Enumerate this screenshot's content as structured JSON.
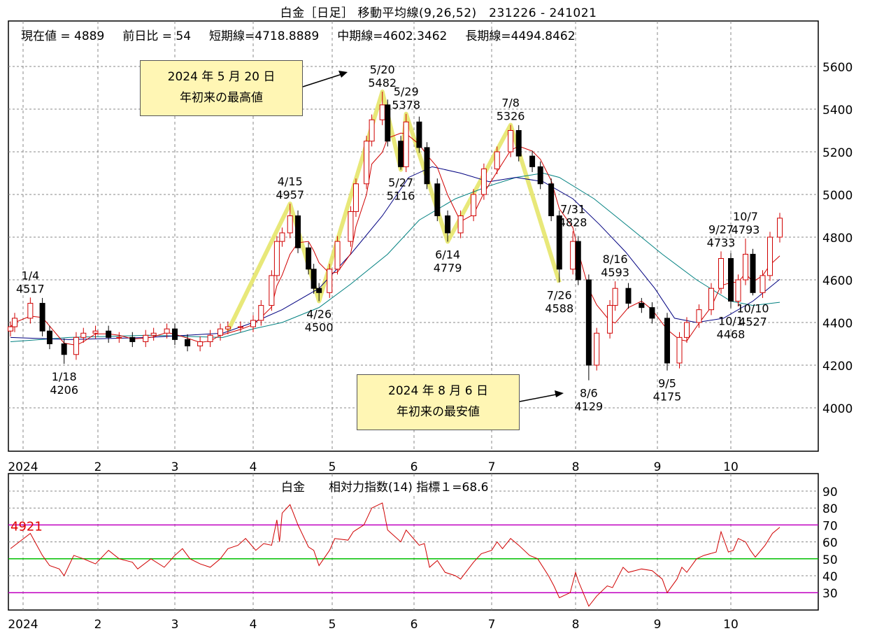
{
  "header": {
    "title": "白金［日足］ 移動平均線(9,26,52)　231226 - 241021",
    "current_label": "現在値 = 4889",
    "change_label": "前日比 = 54",
    "short_label": "短期線=4718.8889",
    "mid_label": "中期線=4602.3462",
    "long_label": "長期線=4494.8462"
  },
  "callouts": [
    {
      "line1": "2024 年 5 月 20 日",
      "line2": "年初来の最高値"
    },
    {
      "line1": "2024 年 8 月 6 日",
      "line2": "年初来の最安値"
    }
  ],
  "rsi_title": "白金　　相対力指数(14) 指標１=68.6",
  "rsi_marker": "4921",
  "colors": {
    "up": "#d00000",
    "down": "#000000",
    "short_ma": "#d00000",
    "mid_ma": "#000080",
    "long_ma": "#008080",
    "rsi": "#d00000",
    "zigzag": "#e6e66a",
    "band": "#c000c0",
    "mid_band": "#00c000",
    "marker": "#e00000"
  },
  "chart_data": [
    {
      "type": "candlestick",
      "title": "白金［日足］ 移動平均線(9,26,52)　231226 - 241021",
      "x_ticks": [
        {
          "date": "2024-01-01",
          "label": "2024"
        },
        {
          "date": "2024-02-01",
          "label": "2"
        },
        {
          "date": "2024-03-01",
          "label": "3"
        },
        {
          "date": "2024-04-01",
          "label": "4"
        },
        {
          "date": "2024-05-01",
          "label": "5"
        },
        {
          "date": "2024-06-01",
          "label": "6"
        },
        {
          "date": "2024-07-01",
          "label": "7"
        },
        {
          "date": "2024-08-01",
          "label": "8"
        },
        {
          "date": "2024-09-01",
          "label": "9"
        },
        {
          "date": "2024-10-01",
          "label": "10"
        }
      ],
      "y_ticks": [
        "4000",
        "4200",
        "4400",
        "4600",
        "4800",
        "5000",
        "5200",
        "5400",
        "5600"
      ],
      "ylim": [
        3800,
        5750
      ],
      "grid": true,
      "closes": [
        [
          "2023-12-26",
          4380
        ],
        [
          "2023-12-28",
          4420
        ],
        [
          "2024-01-04",
          4490
        ],
        [
          "2024-01-09",
          4360
        ],
        [
          "2024-01-12",
          4300
        ],
        [
          "2024-01-18",
          4250
        ],
        [
          "2024-01-23",
          4330
        ],
        [
          "2024-01-26",
          4350
        ],
        [
          "2024-01-31",
          4360
        ],
        [
          "2024-02-05",
          4330
        ],
        [
          "2024-02-09",
          4330
        ],
        [
          "2024-02-14",
          4310
        ],
        [
          "2024-02-19",
          4340
        ],
        [
          "2024-02-22",
          4350
        ],
        [
          "2024-02-27",
          4370
        ],
        [
          "2024-03-01",
          4320
        ],
        [
          "2024-03-06",
          4290
        ],
        [
          "2024-03-11",
          4310
        ],
        [
          "2024-03-15",
          4340
        ],
        [
          "2024-03-19",
          4370
        ],
        [
          "2024-03-22",
          4380
        ],
        [
          "2024-03-27",
          4380
        ],
        [
          "2024-04-01",
          4410
        ],
        [
          "2024-04-04",
          4480
        ],
        [
          "2024-04-08",
          4620
        ],
        [
          "2024-04-10",
          4780
        ],
        [
          "2024-04-12",
          4820
        ],
        [
          "2024-04-15",
          4900
        ],
        [
          "2024-04-18",
          4750
        ],
        [
          "2024-04-22",
          4650
        ],
        [
          "2024-04-24",
          4560
        ],
        [
          "2024-04-26",
          4540
        ],
        [
          "2024-04-30",
          4650
        ],
        [
          "2024-05-03",
          4780
        ],
        [
          "2024-05-08",
          4920
        ],
        [
          "2024-05-10",
          5050
        ],
        [
          "2024-05-14",
          5250
        ],
        [
          "2024-05-16",
          5350
        ],
        [
          "2024-05-20",
          5420
        ],
        [
          "2024-05-22",
          5250
        ],
        [
          "2024-05-27",
          5130
        ],
        [
          "2024-05-29",
          5340
        ],
        [
          "2024-06-03",
          5220
        ],
        [
          "2024-06-06",
          5050
        ],
        [
          "2024-06-10",
          4900
        ],
        [
          "2024-06-14",
          4820
        ],
        [
          "2024-06-19",
          4900
        ],
        [
          "2024-06-24",
          5000
        ],
        [
          "2024-06-28",
          5120
        ],
        [
          "2024-07-03",
          5200
        ],
        [
          "2024-07-08",
          5300
        ],
        [
          "2024-07-11",
          5180
        ],
        [
          "2024-07-16",
          5130
        ],
        [
          "2024-07-19",
          5050
        ],
        [
          "2024-07-23",
          4900
        ],
        [
          "2024-07-26",
          4650
        ],
        [
          "2024-07-31",
          4780
        ],
        [
          "2024-08-02",
          4600
        ],
        [
          "2024-08-06",
          4200
        ],
        [
          "2024-08-09",
          4350
        ],
        [
          "2024-08-14",
          4480
        ],
        [
          "2024-08-16",
          4560
        ],
        [
          "2024-08-21",
          4490
        ],
        [
          "2024-08-26",
          4470
        ],
        [
          "2024-08-30",
          4420
        ],
        [
          "2024-09-05",
          4210
        ],
        [
          "2024-09-10",
          4330
        ],
        [
          "2024-09-13",
          4400
        ],
        [
          "2024-09-18",
          4460
        ],
        [
          "2024-09-23",
          4560
        ],
        [
          "2024-09-27",
          4700
        ],
        [
          "2024-10-01",
          4500
        ],
        [
          "2024-10-04",
          4600
        ],
        [
          "2024-10-07",
          4720
        ],
        [
          "2024-10-10",
          4540
        ],
        [
          "2024-10-14",
          4620
        ],
        [
          "2024-10-17",
          4800
        ],
        [
          "2024-10-21",
          4889
        ]
      ],
      "series": [
        {
          "name": "中期線",
          "points": [
            [
              "2023-12-26",
              4330
            ],
            [
              "2024-01-20",
              4320
            ],
            [
              "2024-02-20",
              4330
            ],
            [
              "2024-03-20",
              4350
            ],
            [
              "2024-04-01",
              4400
            ],
            [
              "2024-04-12",
              4460
            ],
            [
              "2024-04-26",
              4560
            ],
            [
              "2024-05-08",
              4720
            ],
            [
              "2024-05-20",
              4900
            ],
            [
              "2024-05-30",
              5080
            ],
            [
              "2024-06-08",
              5130
            ],
            [
              "2024-06-19",
              5100
            ],
            [
              "2024-06-30",
              5060
            ],
            [
              "2024-07-10",
              5080
            ],
            [
              "2024-07-20",
              5060
            ],
            [
              "2024-07-31",
              4980
            ],
            [
              "2024-08-10",
              4860
            ],
            [
              "2024-08-20",
              4730
            ],
            [
              "2024-08-31",
              4560
            ],
            [
              "2024-09-08",
              4420
            ],
            [
              "2024-09-17",
              4400
            ],
            [
              "2024-09-28",
              4420
            ],
            [
              "2024-10-10",
              4500
            ],
            [
              "2024-10-21",
              4602.3
            ]
          ]
        },
        {
          "name": "長期線",
          "points": [
            [
              "2023-12-26",
              4310
            ],
            [
              "2024-01-20",
              4330
            ],
            [
              "2024-02-20",
              4340
            ],
            [
              "2024-03-20",
              4330
            ],
            [
              "2024-04-01",
              4370
            ],
            [
              "2024-04-12",
              4400
            ],
            [
              "2024-04-26",
              4470
            ],
            [
              "2024-05-08",
              4580
            ],
            [
              "2024-05-22",
              4720
            ],
            [
              "2024-06-03",
              4880
            ],
            [
              "2024-06-17",
              4980
            ],
            [
              "2024-06-30",
              5040
            ],
            [
              "2024-07-10",
              5080
            ],
            [
              "2024-07-20",
              5100
            ],
            [
              "2024-07-26",
              5080
            ],
            [
              "2024-08-08",
              4980
            ],
            [
              "2024-08-21",
              4850
            ],
            [
              "2024-09-03",
              4720
            ],
            [
              "2024-09-17",
              4600
            ],
            [
              "2024-10-01",
              4500
            ],
            [
              "2024-10-10",
              4480
            ],
            [
              "2024-10-21",
              4494.8
            ]
          ]
        }
      ],
      "zigzag": [
        [
          "2024-03-22",
          4360
        ],
        [
          "2024-04-15",
          4957
        ],
        [
          "2024-04-26",
          4500
        ],
        [
          "2024-05-20",
          5482
        ],
        [
          "2024-05-27",
          5116
        ],
        [
          "2024-05-29",
          5378
        ],
        [
          "2024-06-14",
          4779
        ],
        [
          "2024-07-08",
          5326
        ],
        [
          "2024-07-26",
          4588
        ]
      ],
      "annotations": [
        {
          "date": "2024-01-04",
          "value": 4517,
          "label": "1/4",
          "text": "4517",
          "pos": "above"
        },
        {
          "date": "2024-01-18",
          "value": 4206,
          "label": "1/18",
          "text": "4206",
          "pos": "below"
        },
        {
          "date": "2024-04-15",
          "value": 4957,
          "label": "4/15",
          "text": "4957",
          "pos": "above"
        },
        {
          "date": "2024-04-26",
          "value": 4500,
          "label": "4/26",
          "text": "4500",
          "pos": "below"
        },
        {
          "date": "2024-05-20",
          "value": 5482,
          "label": "5/20",
          "text": "5482",
          "pos": "above"
        },
        {
          "date": "2024-05-27",
          "value": 5116,
          "label": "5/27",
          "text": "5116",
          "pos": "below"
        },
        {
          "date": "2024-05-29",
          "value": 5378,
          "label": "5/29",
          "text": "5378",
          "pos": "above"
        },
        {
          "date": "2024-06-14",
          "value": 4779,
          "label": "6/14",
          "text": "4779",
          "pos": "below"
        },
        {
          "date": "2024-07-08",
          "value": 5326,
          "label": "7/8",
          "text": "5326",
          "pos": "above"
        },
        {
          "date": "2024-07-26",
          "value": 4588,
          "label": "7/26",
          "text": "4588",
          "pos": "below"
        },
        {
          "date": "2024-07-31",
          "value": 4828,
          "label": "7/31",
          "text": "4828",
          "pos": "above"
        },
        {
          "date": "2024-08-06",
          "value": 4129,
          "label": "8/6",
          "text": "4129",
          "pos": "below"
        },
        {
          "date": "2024-08-16",
          "value": 4593,
          "label": "8/16",
          "text": "4593",
          "pos": "above"
        },
        {
          "date": "2024-09-05",
          "value": 4175,
          "label": "9/5",
          "text": "4175",
          "pos": "below"
        },
        {
          "date": "2024-09-27",
          "value": 4733,
          "label": "9/27",
          "text": "4733",
          "pos": "above"
        },
        {
          "date": "2024-10-07",
          "value": 4793,
          "label": "10/7",
          "text": "4793",
          "pos": "above"
        },
        {
          "date": "2024-10-01",
          "value": 4468,
          "label": "10/1",
          "text": "4468",
          "pos": "below"
        },
        {
          "date": "2024-10-10",
          "value": 4527,
          "label": "10/10",
          "text": "4527",
          "pos": "below"
        }
      ]
    },
    {
      "type": "line",
      "title": "白金　　相対力指数(14) 指標１=68.6",
      "y_ticks": [
        "30",
        "40",
        "50",
        "60",
        "70",
        "80",
        "90"
      ],
      "ylim": [
        20,
        95
      ],
      "bands": [
        30,
        50,
        70
      ],
      "grid": true,
      "values": [
        [
          "2023-12-26",
          56
        ],
        [
          "2024-01-04",
          65
        ],
        [
          "2024-01-09",
          52
        ],
        [
          "2024-01-12",
          46
        ],
        [
          "2024-01-16",
          44
        ],
        [
          "2024-01-18",
          40
        ],
        [
          "2024-01-22",
          52
        ],
        [
          "2024-01-26",
          50
        ],
        [
          "2024-01-31",
          47
        ],
        [
          "2024-02-05",
          55
        ],
        [
          "2024-02-09",
          50
        ],
        [
          "2024-02-14",
          48
        ],
        [
          "2024-02-16",
          44
        ],
        [
          "2024-02-21",
          50
        ],
        [
          "2024-02-26",
          45
        ],
        [
          "2024-03-01",
          52
        ],
        [
          "2024-03-04",
          56
        ],
        [
          "2024-03-07",
          50
        ],
        [
          "2024-03-11",
          47
        ],
        [
          "2024-03-15",
          45
        ],
        [
          "2024-03-19",
          50
        ],
        [
          "2024-03-22",
          56
        ],
        [
          "2024-03-26",
          58
        ],
        [
          "2024-03-29",
          62
        ],
        [
          "2024-04-02",
          55
        ],
        [
          "2024-04-05",
          59
        ],
        [
          "2024-04-08",
          58
        ],
        [
          "2024-04-10",
          73
        ],
        [
          "2024-04-11",
          60
        ],
        [
          "2024-04-12",
          77
        ],
        [
          "2024-04-15",
          82
        ],
        [
          "2024-04-18",
          70
        ],
        [
          "2024-04-22",
          57
        ],
        [
          "2024-04-24",
          55
        ],
        [
          "2024-04-26",
          46
        ],
        [
          "2024-04-30",
          55
        ],
        [
          "2024-05-02",
          62
        ],
        [
          "2024-05-07",
          61
        ],
        [
          "2024-05-09",
          66
        ],
        [
          "2024-05-13",
          70
        ],
        [
          "2024-05-16",
          80
        ],
        [
          "2024-05-20",
          83
        ],
        [
          "2024-05-22",
          67
        ],
        [
          "2024-05-27",
          60
        ],
        [
          "2024-05-29",
          67
        ],
        [
          "2024-06-03",
          58
        ],
        [
          "2024-06-05",
          59
        ],
        [
          "2024-06-07",
          45
        ],
        [
          "2024-06-10",
          49
        ],
        [
          "2024-06-13",
          42
        ],
        [
          "2024-06-17",
          40
        ],
        [
          "2024-06-19",
          38
        ],
        [
          "2024-06-24",
          48
        ],
        [
          "2024-06-27",
          53
        ],
        [
          "2024-07-01",
          55
        ],
        [
          "2024-07-03",
          60
        ],
        [
          "2024-07-05",
          56
        ],
        [
          "2024-07-08",
          62
        ],
        [
          "2024-07-11",
          58
        ],
        [
          "2024-07-15",
          52
        ],
        [
          "2024-07-18",
          50
        ],
        [
          "2024-07-22",
          40
        ],
        [
          "2024-07-24",
          34
        ],
        [
          "2024-07-26",
          27
        ],
        [
          "2024-07-30",
          30
        ],
        [
          "2024-08-01",
          42
        ],
        [
          "2024-08-02",
          37
        ],
        [
          "2024-08-06",
          22
        ],
        [
          "2024-08-09",
          28
        ],
        [
          "2024-08-13",
          34
        ],
        [
          "2024-08-15",
          33
        ],
        [
          "2024-08-19",
          45
        ],
        [
          "2024-08-21",
          42
        ],
        [
          "2024-08-26",
          44
        ],
        [
          "2024-08-30",
          43
        ],
        [
          "2024-09-03",
          38
        ],
        [
          "2024-09-05",
          30
        ],
        [
          "2024-09-09",
          38
        ],
        [
          "2024-09-11",
          45
        ],
        [
          "2024-09-13",
          42
        ],
        [
          "2024-09-17",
          50
        ],
        [
          "2024-09-20",
          52
        ],
        [
          "2024-09-25",
          54
        ],
        [
          "2024-09-27",
          66
        ],
        [
          "2024-09-30",
          54
        ],
        [
          "2024-10-02",
          55
        ],
        [
          "2024-10-04",
          62
        ],
        [
          "2024-10-07",
          60
        ],
        [
          "2024-10-09",
          55
        ],
        [
          "2024-10-11",
          51
        ],
        [
          "2024-10-15",
          58
        ],
        [
          "2024-10-18",
          65
        ],
        [
          "2024-10-21",
          68.6
        ]
      ]
    }
  ]
}
